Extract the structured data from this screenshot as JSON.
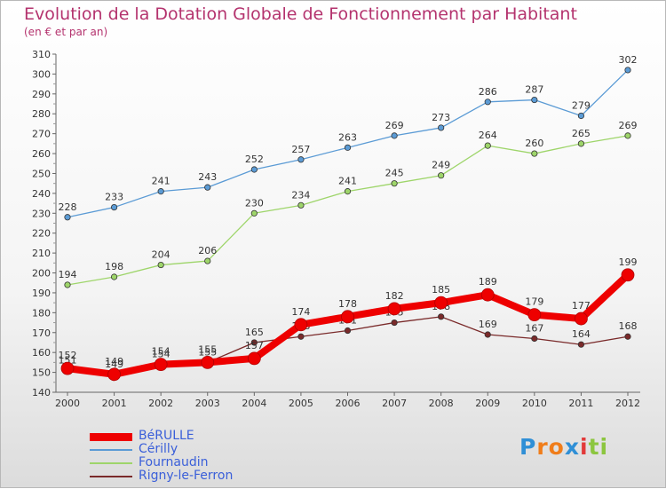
{
  "header": {
    "title": "Evolution de la Dotation Globale de Fonctionnement par Habitant",
    "subtitle": "(en € et par an)"
  },
  "brand": {
    "letters": [
      "P",
      "r",
      "o",
      "x",
      "i",
      "t",
      "i"
    ],
    "colors": [
      "#2f8fd6",
      "#f07d1a",
      "#f07d1a",
      "#2f8fd6",
      "#e23a3a",
      "#8cc63f",
      "#8cc63f"
    ]
  },
  "chart_data": {
    "type": "line",
    "title": "Evolution de la Dotation Globale de Fonctionnement par Habitant",
    "subtitle": "(en € et par an)",
    "xlabel": "",
    "ylabel": "",
    "x": [
      "2000",
      "2001",
      "2002",
      "2003",
      "2004",
      "2005",
      "2006",
      "2007",
      "2008",
      "2009",
      "2010",
      "2011",
      "2012"
    ],
    "ylim": [
      140,
      310
    ],
    "yticks": [
      140,
      150,
      160,
      170,
      180,
      190,
      200,
      210,
      220,
      230,
      240,
      250,
      260,
      270,
      280,
      290,
      300,
      310
    ],
    "grid": false,
    "legend_position": "bottom-left",
    "series": [
      {
        "name": "Cérilly",
        "color": "#5b9bd5",
        "values": [
          228,
          233,
          241,
          243,
          252,
          257,
          263,
          269,
          273,
          286,
          287,
          279,
          302
        ]
      },
      {
        "name": "Fournaudin",
        "color": "#9ed56a",
        "values": [
          194,
          198,
          204,
          206,
          230,
          234,
          241,
          245,
          249,
          264,
          260,
          265,
          269
        ]
      },
      {
        "name": "Rigny-le-Ferron",
        "color": "#7a2a2a",
        "values": [
          151,
          149,
          154,
          155,
          165,
          168,
          171,
          175,
          178,
          169,
          167,
          164,
          168
        ]
      },
      {
        "name": "BéRULLE",
        "color": "#ee0000",
        "values": [
          152,
          149,
          154,
          155,
          157,
          174,
          178,
          182,
          185,
          189,
          179,
          177,
          199
        ]
      }
    ]
  }
}
